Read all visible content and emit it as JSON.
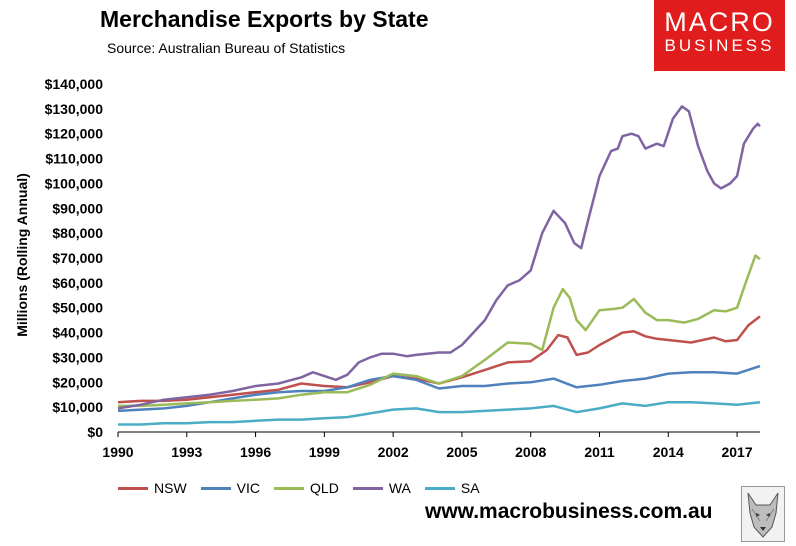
{
  "header": {
    "title": "Merchandise Exports by State",
    "subtitle": "Source:  Australian Bureau of Statistics"
  },
  "logo": {
    "line1": "MACRO",
    "line2": "BUSINESS"
  },
  "footer": {
    "url": "www.macrobusiness.com.au"
  },
  "colors": {
    "NSW": "#c0504d",
    "VIC": "#4f81bd",
    "QLD": "#9bbb59",
    "WA": "#8064a2",
    "SA": "#4bacc6",
    "logo_bg": "#e01c1c"
  },
  "chart_data": {
    "type": "line",
    "title": "Merchandise Exports by State",
    "xlabel": "",
    "ylabel": "Millions (Rolling Annual)",
    "xlim": [
      1990,
      2018
    ],
    "ylim": [
      0,
      140000
    ],
    "x_ticks": [
      "1990",
      "1993",
      "1996",
      "1999",
      "2002",
      "2005",
      "2008",
      "2011",
      "2014",
      "2017"
    ],
    "y_ticks": [
      "$0",
      "$10,000",
      "$20,000",
      "$30,000",
      "$40,000",
      "$50,000",
      "$60,000",
      "$70,000",
      "$80,000",
      "$90,000",
      "$100,000",
      "$110,000",
      "$120,000",
      "$130,000",
      "$140,000"
    ],
    "y_tick_values": [
      0,
      10000,
      20000,
      30000,
      40000,
      50000,
      60000,
      70000,
      80000,
      90000,
      100000,
      110000,
      120000,
      130000,
      140000
    ],
    "grid": false,
    "legend_position": "bottom",
    "series": [
      {
        "name": "NSW",
        "points": [
          [
            1990,
            12000
          ],
          [
            1991,
            12500
          ],
          [
            1992,
            12500
          ],
          [
            1993,
            13000
          ],
          [
            1994,
            14000
          ],
          [
            1995,
            15000
          ],
          [
            1996,
            16000
          ],
          [
            1997,
            17000
          ],
          [
            1998,
            19500
          ],
          [
            1999,
            18500
          ],
          [
            2000,
            18000
          ],
          [
            2001,
            20000
          ],
          [
            2002,
            22500
          ],
          [
            2003,
            21500
          ],
          [
            2004,
            19500
          ],
          [
            2005,
            22000
          ],
          [
            2006,
            25000
          ],
          [
            2007,
            28000
          ],
          [
            2008,
            28500
          ],
          [
            2008.7,
            33000
          ],
          [
            2009.2,
            39000
          ],
          [
            2009.6,
            38000
          ],
          [
            2010,
            31000
          ],
          [
            2010.5,
            32000
          ],
          [
            2011,
            35000
          ],
          [
            2011.5,
            37500
          ],
          [
            2012,
            40000
          ],
          [
            2012.5,
            40500
          ],
          [
            2013,
            38500
          ],
          [
            2013.5,
            37500
          ],
          [
            2014,
            37000
          ],
          [
            2015,
            36000
          ],
          [
            2016,
            38000
          ],
          [
            2016.5,
            36500
          ],
          [
            2017,
            37000
          ],
          [
            2017.5,
            43000
          ],
          [
            2018,
            46500
          ]
        ]
      },
      {
        "name": "VIC",
        "points": [
          [
            1990,
            8500
          ],
          [
            1991,
            9000
          ],
          [
            1992,
            9500
          ],
          [
            1993,
            10500
          ],
          [
            1994,
            12000
          ],
          [
            1995,
            13500
          ],
          [
            1996,
            15000
          ],
          [
            1997,
            16000
          ],
          [
            1998,
            16500
          ],
          [
            1999,
            16500
          ],
          [
            2000,
            18000
          ],
          [
            2001,
            21000
          ],
          [
            2002,
            22500
          ],
          [
            2003,
            21000
          ],
          [
            2004,
            17500
          ],
          [
            2005,
            18500
          ],
          [
            2006,
            18500
          ],
          [
            2007,
            19500
          ],
          [
            2008,
            20000
          ],
          [
            2009,
            21500
          ],
          [
            2010,
            18000
          ],
          [
            2011,
            19000
          ],
          [
            2012,
            20500
          ],
          [
            2013,
            21500
          ],
          [
            2014,
            23500
          ],
          [
            2015,
            24000
          ],
          [
            2016,
            24000
          ],
          [
            2017,
            23500
          ],
          [
            2018,
            26500
          ]
        ]
      },
      {
        "name": "QLD",
        "points": [
          [
            1990,
            10500
          ],
          [
            1991,
            10500
          ],
          [
            1992,
            11000
          ],
          [
            1993,
            11500
          ],
          [
            1994,
            12000
          ],
          [
            1995,
            12500
          ],
          [
            1996,
            13000
          ],
          [
            1997,
            13500
          ],
          [
            1998,
            15000
          ],
          [
            1999,
            16000
          ],
          [
            2000,
            16000
          ],
          [
            2001,
            19000
          ],
          [
            2002,
            23500
          ],
          [
            2003,
            22500
          ],
          [
            2004,
            19500
          ],
          [
            2005,
            22500
          ],
          [
            2006,
            29000
          ],
          [
            2007,
            36000
          ],
          [
            2008,
            35500
          ],
          [
            2008.5,
            33000
          ],
          [
            2009,
            50000
          ],
          [
            2009.4,
            57500
          ],
          [
            2009.7,
            54000
          ],
          [
            2010,
            45000
          ],
          [
            2010.4,
            41000
          ],
          [
            2011,
            49000
          ],
          [
            2011.6,
            49500
          ],
          [
            2012,
            50000
          ],
          [
            2012.5,
            53500
          ],
          [
            2013,
            48000
          ],
          [
            2013.5,
            45000
          ],
          [
            2014,
            45000
          ],
          [
            2014.7,
            44000
          ],
          [
            2015.3,
            45500
          ],
          [
            2016,
            49000
          ],
          [
            2016.5,
            48500
          ],
          [
            2017,
            50000
          ],
          [
            2017.3,
            58000
          ],
          [
            2017.8,
            71000
          ],
          [
            2018,
            69500
          ]
        ]
      },
      {
        "name": "WA",
        "points": [
          [
            1990,
            9500
          ],
          [
            1991,
            11000
          ],
          [
            1992,
            13000
          ],
          [
            1993,
            14000
          ],
          [
            1994,
            15000
          ],
          [
            1995,
            16500
          ],
          [
            1996,
            18500
          ],
          [
            1997,
            19500
          ],
          [
            1998,
            22000
          ],
          [
            1998.5,
            24000
          ],
          [
            1999,
            22500
          ],
          [
            1999.5,
            21000
          ],
          [
            2000,
            23000
          ],
          [
            2000.5,
            28000
          ],
          [
            2001,
            30000
          ],
          [
            2001.5,
            31500
          ],
          [
            2002,
            31500
          ],
          [
            2002.6,
            30500
          ],
          [
            2003,
            31000
          ],
          [
            2004,
            32000
          ],
          [
            2004.5,
            32000
          ],
          [
            2005,
            35000
          ],
          [
            2005.5,
            40000
          ],
          [
            2006,
            45000
          ],
          [
            2006.5,
            53000
          ],
          [
            2007,
            59000
          ],
          [
            2007.5,
            61000
          ],
          [
            2008,
            65000
          ],
          [
            2008.5,
            80000
          ],
          [
            2009,
            89000
          ],
          [
            2009.5,
            84000
          ],
          [
            2009.9,
            76000
          ],
          [
            2010.2,
            74000
          ],
          [
            2010.5,
            85000
          ],
          [
            2011,
            103000
          ],
          [
            2011.5,
            113000
          ],
          [
            2011.8,
            114000
          ],
          [
            2012,
            119000
          ],
          [
            2012.4,
            120000
          ],
          [
            2012.7,
            119000
          ],
          [
            2013,
            114000
          ],
          [
            2013.5,
            116000
          ],
          [
            2013.8,
            115000
          ],
          [
            2014.2,
            126000
          ],
          [
            2014.6,
            131000
          ],
          [
            2014.9,
            129000
          ],
          [
            2015.3,
            115000
          ],
          [
            2015.7,
            105000
          ],
          [
            2016,
            100000
          ],
          [
            2016.3,
            98000
          ],
          [
            2016.7,
            100000
          ],
          [
            2017,
            103000
          ],
          [
            2017.3,
            116000
          ],
          [
            2017.7,
            122000
          ],
          [
            2017.9,
            124000
          ],
          [
            2018,
            123000
          ]
        ]
      },
      {
        "name": "SA",
        "points": [
          [
            1990,
            3000
          ],
          [
            1991,
            3000
          ],
          [
            1992,
            3500
          ],
          [
            1993,
            3500
          ],
          [
            1994,
            4000
          ],
          [
            1995,
            4000
          ],
          [
            1996,
            4500
          ],
          [
            1997,
            5000
          ],
          [
            1998,
            5000
          ],
          [
            1999,
            5500
          ],
          [
            2000,
            6000
          ],
          [
            2001,
            7500
          ],
          [
            2002,
            9000
          ],
          [
            2003,
            9500
          ],
          [
            2004,
            8000
          ],
          [
            2005,
            8000
          ],
          [
            2006,
            8500
          ],
          [
            2007,
            9000
          ],
          [
            2008,
            9500
          ],
          [
            2009,
            10500
          ],
          [
            2010,
            8000
          ],
          [
            2011,
            9500
          ],
          [
            2012,
            11500
          ],
          [
            2013,
            10500
          ],
          [
            2014,
            12000
          ],
          [
            2015,
            12000
          ],
          [
            2016,
            11500
          ],
          [
            2017,
            11000
          ],
          [
            2018,
            12000
          ]
        ]
      }
    ]
  }
}
